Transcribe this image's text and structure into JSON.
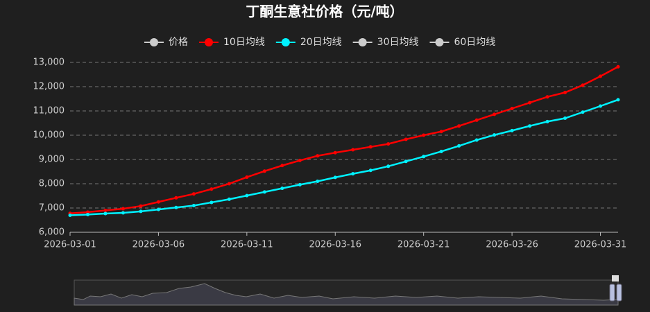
{
  "chart_data": {
    "type": "line",
    "title": "丁酮生意社价格（元/吨）",
    "legend": [
      {
        "name": "价格",
        "color": "#cccccc",
        "active": false
      },
      {
        "name": "10日均线",
        "color": "#ff0000",
        "active": true
      },
      {
        "name": "20日均线",
        "color": "#00f2ff",
        "active": true
      },
      {
        "name": "30日均线",
        "color": "#cccccc",
        "active": false
      },
      {
        "name": "60日均线",
        "color": "#cccccc",
        "active": false
      }
    ],
    "categories": [
      "2026-03-01",
      "2026-03-02",
      "2026-03-03",
      "2026-03-04",
      "2026-03-05",
      "2026-03-06",
      "2026-03-07",
      "2026-03-08",
      "2026-03-09",
      "2026-03-10",
      "2026-03-11",
      "2026-03-12",
      "2026-03-13",
      "2026-03-14",
      "2026-03-15",
      "2026-03-16",
      "2026-03-17",
      "2026-03-18",
      "2026-03-19",
      "2026-03-20",
      "2026-03-21",
      "2026-03-22",
      "2026-03-23",
      "2026-03-24",
      "2026-03-25",
      "2026-03-26",
      "2026-03-27",
      "2026-03-28",
      "2026-03-29",
      "2026-03-30",
      "2026-03-31",
      "2026-04-01"
    ],
    "xtick_every": 5,
    "series": [
      {
        "name": "10日均线",
        "color": "#ff0000",
        "values": [
          6780,
          6830,
          6900,
          6970,
          7080,
          7250,
          7420,
          7580,
          7780,
          8000,
          8270,
          8520,
          8750,
          8960,
          9150,
          9280,
          9400,
          9520,
          9640,
          9830,
          10000,
          10150,
          10380,
          10620,
          10860,
          11100,
          11340,
          11580,
          11760,
          12060,
          12430,
          12820
        ]
      },
      {
        "name": "20日均线",
        "color": "#00f2ff",
        "values": [
          6700,
          6730,
          6770,
          6800,
          6860,
          6940,
          7020,
          7100,
          7230,
          7360,
          7510,
          7660,
          7810,
          7960,
          8100,
          8260,
          8410,
          8550,
          8720,
          8920,
          9120,
          9330,
          9560,
          9800,
          10010,
          10190,
          10380,
          10560,
          10700,
          10950,
          11200,
          11460
        ]
      }
    ],
    "ylim": [
      6000,
      13000
    ],
    "yticks": [
      {
        "value": 6000,
        "label": "6,000"
      },
      {
        "value": 7000,
        "label": "7,000"
      },
      {
        "value": 8000,
        "label": "8,000"
      },
      {
        "value": 9000,
        "label": "9,000"
      },
      {
        "value": 10000,
        "label": "10,000"
      },
      {
        "value": 11000,
        "label": "11,000"
      },
      {
        "value": 12000,
        "label": "12,000"
      },
      {
        "value": 13000,
        "label": "13,000"
      }
    ],
    "grid": true
  }
}
